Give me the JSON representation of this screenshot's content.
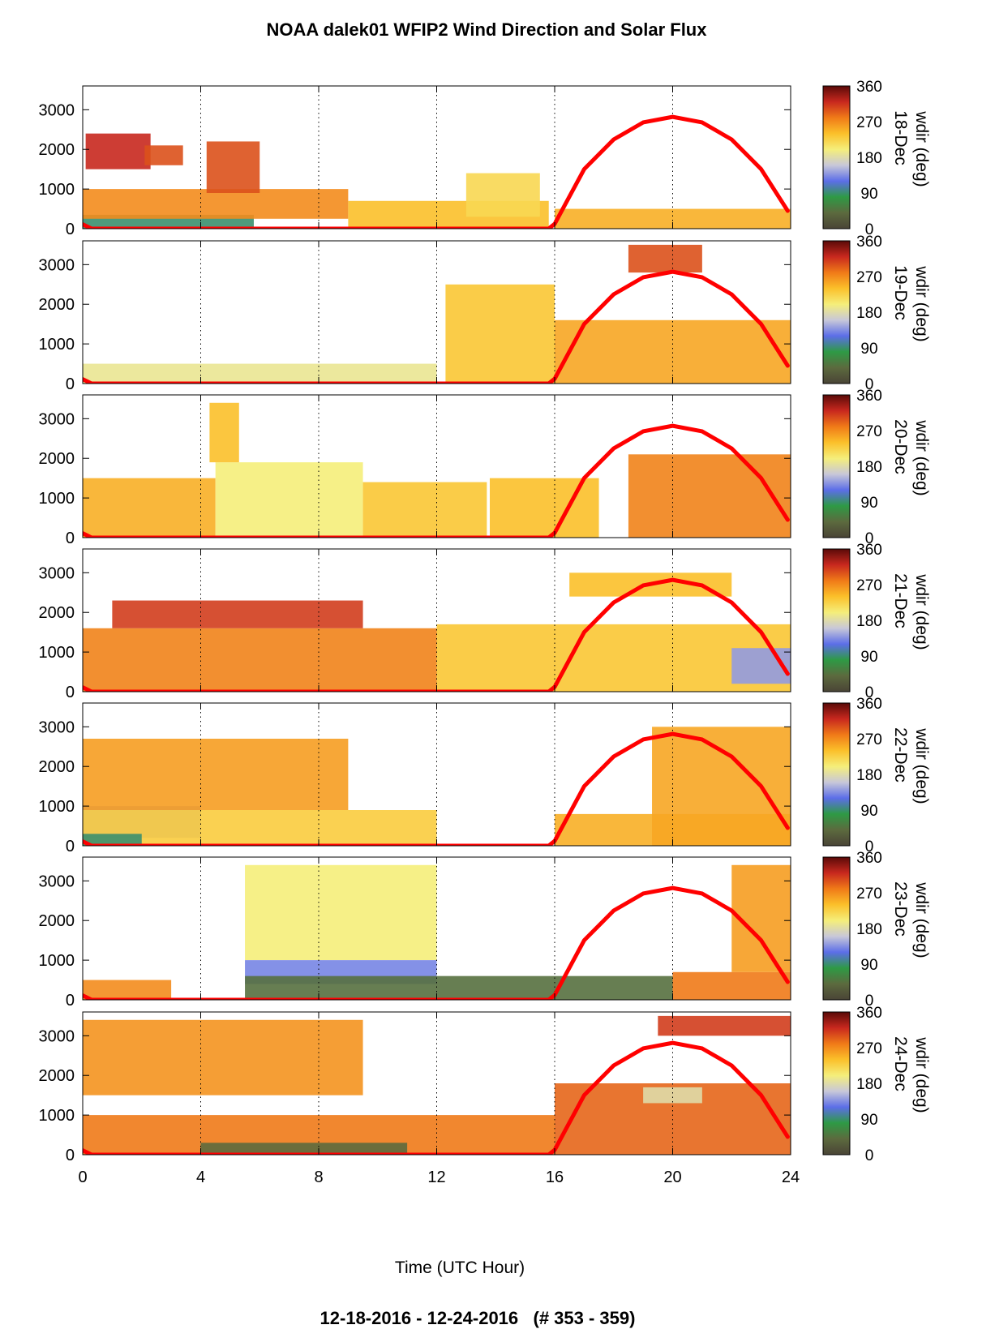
{
  "title": "NOAA dalek01 WFIP2 Wind Direction and Solar Flux",
  "footer": "12-18-2016 - 12-24-2016   (# 353 - 359)",
  "colors": {
    "solar_flux": "#ff0000",
    "colormap": [
      "#4a4436",
      "#5c6a3e",
      "#2e9a45",
      "#5c6ee8",
      "#c8c8d8",
      "#f5ee7a",
      "#fbc02a",
      "#f07a18",
      "#c8281e",
      "#5a0a08"
    ]
  },
  "chart_data": {
    "type": "heatmap",
    "xlabel": "Time (UTC Hour)",
    "xlim": [
      0,
      24
    ],
    "x_ticks": [
      0,
      4,
      8,
      12,
      16,
      20,
      24
    ],
    "x_tick_labels": [
      "0",
      "4",
      "8",
      "12",
      "16",
      "20",
      "24"
    ],
    "ylim": [
      0,
      3600
    ],
    "y_ticks": [
      0,
      1000,
      2000,
      3000
    ],
    "y_tick_labels": [
      "0",
      "1000",
      "2000",
      "3000"
    ],
    "grid": "vertical dotted lines at x = 4, 8, 12, 16, 20",
    "colorbar": {
      "label": "wdir (deg)",
      "range": [
        0,
        360
      ],
      "ticks": [
        0,
        90,
        180,
        270,
        360
      ],
      "tick_labels": [
        "0",
        "90",
        "180",
        "270",
        "360"
      ]
    },
    "solar_flux": {
      "color": "#ff0000",
      "x": [
        0,
        0.3,
        15.8,
        16,
        17,
        18,
        19,
        20,
        21,
        22,
        23,
        23.9
      ],
      "y": [
        110,
        0,
        0,
        120,
        1500,
        2250,
        2680,
        2820,
        2680,
        2250,
        1500,
        450
      ]
    },
    "panels": [
      {
        "date_label": "18-Dec",
        "regions": [
          {
            "x": [
              0,
              5.8
            ],
            "y": [
              0,
              350
            ],
            "wdir": 90
          },
          {
            "x": [
              0,
              9
            ],
            "y": [
              250,
              1000
            ],
            "wdir": 270
          },
          {
            "x": [
              9,
              15.8
            ],
            "y": [
              0,
              700
            ],
            "wdir": 240
          },
          {
            "x": [
              0.1,
              2.3
            ],
            "y": [
              1500,
              2400
            ],
            "wdir": 320
          },
          {
            "x": [
              2.1,
              3.4
            ],
            "y": [
              1600,
              2100
            ],
            "wdir": 300
          },
          {
            "x": [
              4.2,
              6
            ],
            "y": [
              900,
              2200
            ],
            "wdir": 300
          },
          {
            "x": [
              13,
              15.5
            ],
            "y": [
              300,
              1400
            ],
            "wdir": 220
          },
          {
            "x": [
              16,
              24
            ],
            "y": [
              0,
              500
            ],
            "wdir": 250
          }
        ]
      },
      {
        "date_label": "19-Dec",
        "regions": [
          {
            "x": [
              0,
              12
            ],
            "y": [
              0,
              500
            ],
            "wdir": 190
          },
          {
            "x": [
              12.3,
              16
            ],
            "y": [
              0,
              2500
            ],
            "wdir": 235
          },
          {
            "x": [
              16,
              24
            ],
            "y": [
              0,
              1600
            ],
            "wdir": 255
          },
          {
            "x": [
              18.5,
              21
            ],
            "y": [
              2800,
              3500
            ],
            "wdir": 300
          }
        ]
      },
      {
        "date_label": "20-Dec",
        "regions": [
          {
            "x": [
              0,
              4.5
            ],
            "y": [
              0,
              1500
            ],
            "wdir": 250
          },
          {
            "x": [
              4.5,
              9.5
            ],
            "y": [
              0,
              1900
            ],
            "wdir": 200
          },
          {
            "x": [
              4.3,
              5.3
            ],
            "y": [
              1900,
              3400
            ],
            "wdir": 240
          },
          {
            "x": [
              9.5,
              13.7
            ],
            "y": [
              0,
              1400
            ],
            "wdir": 235
          },
          {
            "x": [
              13.8,
              17.5
            ],
            "y": [
              0,
              1500
            ],
            "wdir": 240
          },
          {
            "x": [
              18.5,
              24
            ],
            "y": [
              0,
              2100
            ],
            "wdir": 275
          }
        ]
      },
      {
        "date_label": "21-Dec",
        "regions": [
          {
            "x": [
              0,
              12
            ],
            "y": [
              0,
              1600
            ],
            "wdir": 275
          },
          {
            "x": [
              1,
              9.5
            ],
            "y": [
              1600,
              2300
            ],
            "wdir": 310
          },
          {
            "x": [
              12,
              24
            ],
            "y": [
              0,
              1700
            ],
            "wdir": 235
          },
          {
            "x": [
              22,
              24
            ],
            "y": [
              200,
              1100
            ],
            "wdir": 140
          },
          {
            "x": [
              16.5,
              22
            ],
            "y": [
              2400,
              3000
            ],
            "wdir": 240
          }
        ]
      },
      {
        "date_label": "22-Dec",
        "regions": [
          {
            "x": [
              0,
              4
            ],
            "y": [
              200,
              1000
            ],
            "wdir": 140
          },
          {
            "x": [
              0,
              12
            ],
            "y": [
              0,
              900
            ],
            "wdir": 230
          },
          {
            "x": [
              0,
              2
            ],
            "y": [
              0,
              300
            ],
            "wdir": 90
          },
          {
            "x": [
              0,
              9
            ],
            "y": [
              900,
              2700
            ],
            "wdir": 260
          },
          {
            "x": [
              16,
              24
            ],
            "y": [
              0,
              800
            ],
            "wdir": 250
          },
          {
            "x": [
              19.3,
              24
            ],
            "y": [
              0,
              3000
            ],
            "wdir": 255
          }
        ]
      },
      {
        "date_label": "23-Dec",
        "regions": [
          {
            "x": [
              5.5,
              12
            ],
            "y": [
              1000,
              3400
            ],
            "wdir": 200
          },
          {
            "x": [
              5.5,
              12
            ],
            "y": [
              400,
              1000
            ],
            "wdir": 130
          },
          {
            "x": [
              5.5,
              20
            ],
            "y": [
              0,
              600
            ],
            "wdir": 45
          },
          {
            "x": [
              20,
              24
            ],
            "y": [
              0,
              700
            ],
            "wdir": 280
          },
          {
            "x": [
              22,
              24
            ],
            "y": [
              700,
              3400
            ],
            "wdir": 260
          },
          {
            "x": [
              0,
              3
            ],
            "y": [
              0,
              500
            ],
            "wdir": 270
          }
        ]
      },
      {
        "date_label": "24-Dec",
        "regions": [
          {
            "x": [
              0,
              9.5
            ],
            "y": [
              1500,
              3400
            ],
            "wdir": 265
          },
          {
            "x": [
              0,
              16
            ],
            "y": [
              0,
              1000
            ],
            "wdir": 280
          },
          {
            "x": [
              4,
              11
            ],
            "y": [
              0,
              300
            ],
            "wdir": 40
          },
          {
            "x": [
              16,
              24
            ],
            "y": [
              0,
              1800
            ],
            "wdir": 290
          },
          {
            "x": [
              19,
              21
            ],
            "y": [
              1300,
              1700
            ],
            "wdir": 180
          },
          {
            "x": [
              19.5,
              24
            ],
            "y": [
              3000,
              3500
            ],
            "wdir": 310
          }
        ]
      }
    ]
  }
}
